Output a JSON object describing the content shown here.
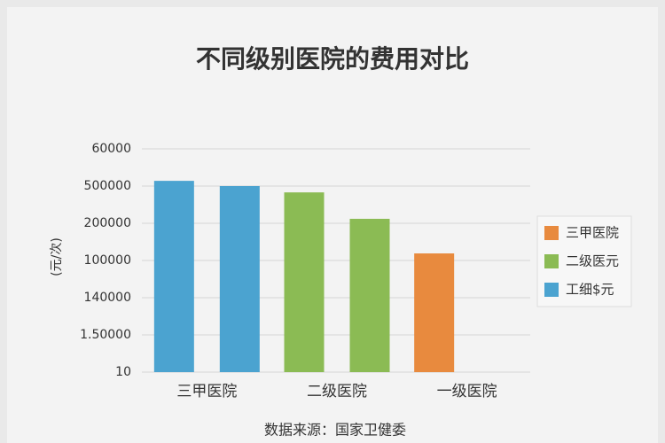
{
  "chart_data": {
    "type": "bar",
    "title": "不同级别医院的费用对比",
    "y_label": "(元/次)",
    "source": "数据来源：国家卫健委",
    "categories": [
      "三甲医院",
      "二级医院",
      "一级医院"
    ],
    "category_colors": [
      "#4ba3d0",
      "#8bbb54",
      "#e88a3e"
    ],
    "series": [
      {
        "values": [
          5.14,
          4.83,
          3.19
        ]
      },
      {
        "values": [
          5.0,
          4.12,
          null
        ]
      }
    ],
    "ylim": [
      0,
      6
    ],
    "yticks": [
      {
        "value": 0,
        "label": "10"
      },
      {
        "value": 1,
        "label": "1.50000"
      },
      {
        "value": 2,
        "label": "140000"
      },
      {
        "value": 3,
        "label": "100000"
      },
      {
        "value": 4,
        "label": "200000"
      },
      {
        "value": 5,
        "label": "500000"
      },
      {
        "value": 6,
        "label": "60000"
      }
    ],
    "grid": true,
    "legend": [
      {
        "label": "三甲医院",
        "color": "#e88a3e"
      },
      {
        "label": "二级医元",
        "color": "#8bbb54"
      },
      {
        "label": "工细$元",
        "color": "#4ba3d0"
      }
    ]
  }
}
